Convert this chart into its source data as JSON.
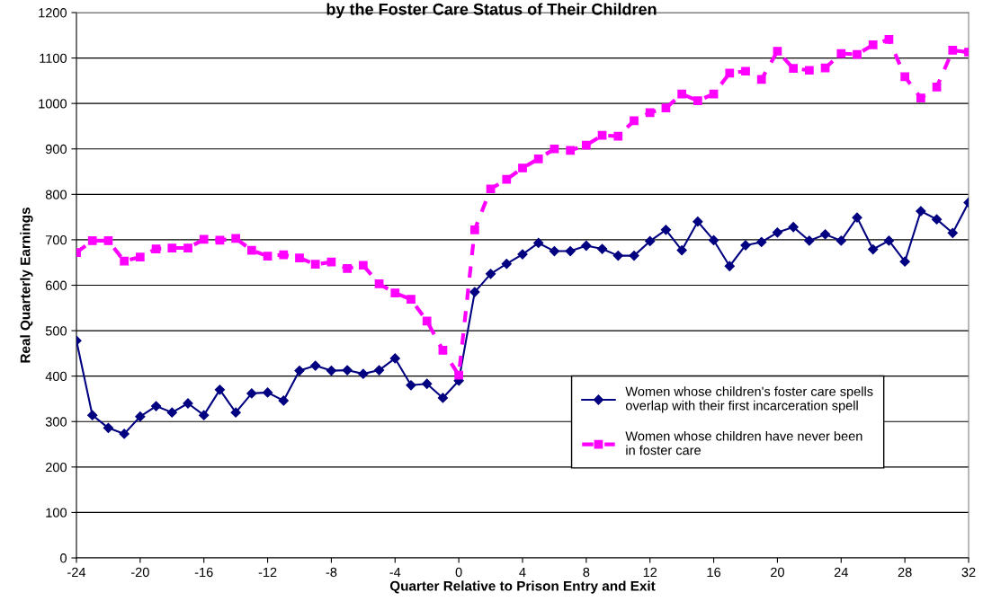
{
  "chart_data": {
    "type": "line",
    "title": "by the Foster Care Status of Their Children",
    "xlabel": "Quarter Relative to Prison Entry and Exit",
    "ylabel": "Real Quarterly Earnings",
    "x": [
      -24,
      -23,
      -22,
      -21,
      -20,
      -19,
      -18,
      -17,
      -16,
      -15,
      -14,
      -13,
      -12,
      -11,
      -10,
      -9,
      -8,
      -7,
      -6,
      -5,
      -4,
      -3,
      -2,
      -1,
      0,
      1,
      2,
      3,
      4,
      5,
      6,
      7,
      8,
      9,
      10,
      11,
      12,
      13,
      14,
      15,
      16,
      17,
      18,
      19,
      20,
      21,
      22,
      23,
      24,
      25,
      26,
      27,
      28,
      29,
      30,
      31,
      32
    ],
    "series": [
      {
        "name": "Women whose children's foster care spells\noverlap with their first incarceration spell",
        "color": "#000080",
        "marker": "diamond",
        "line_style": "solid",
        "values": [
          478,
          314,
          286,
          273,
          311,
          334,
          320,
          340,
          314,
          370,
          320,
          362,
          364,
          346,
          412,
          423,
          412,
          413,
          405,
          413,
          439,
          380,
          383,
          352,
          390,
          585,
          625,
          647,
          668,
          693,
          675,
          675,
          687,
          680,
          665,
          665,
          697,
          722,
          677,
          740,
          699,
          642,
          688,
          695,
          716,
          728,
          698,
          712,
          698,
          749,
          679,
          698,
          652,
          763,
          745,
          715,
          782
        ]
      },
      {
        "name": "Women whose children have never been\nin foster care",
        "color": "#ff00ff",
        "marker": "square",
        "line_style": "dashed",
        "values": [
          672,
          698,
          698,
          653,
          662,
          680,
          682,
          682,
          701,
          699,
          703,
          677,
          664,
          667,
          660,
          646,
          651,
          637,
          644,
          603,
          583,
          569,
          521,
          457,
          402,
          722,
          812,
          833,
          858,
          878,
          900,
          897,
          908,
          930,
          928,
          962,
          980,
          990,
          1021,
          1006,
          1021,
          1067,
          1071,
          1053,
          1115,
          1077,
          1073,
          1078,
          1110,
          1108,
          1129,
          1141,
          1059,
          1012,
          1036,
          1117,
          1113
        ]
      }
    ],
    "xlim": [
      -24,
      32
    ],
    "xticks": [
      -24,
      -20,
      -16,
      -12,
      -8,
      -4,
      0,
      4,
      8,
      12,
      16,
      20,
      24,
      28,
      32
    ],
    "ylim": [
      0,
      1200
    ],
    "yticks": [
      0,
      100,
      200,
      300,
      400,
      500,
      600,
      700,
      800,
      900,
      1000,
      1100,
      1200
    ],
    "grid": "y",
    "legend": "bottom right"
  }
}
